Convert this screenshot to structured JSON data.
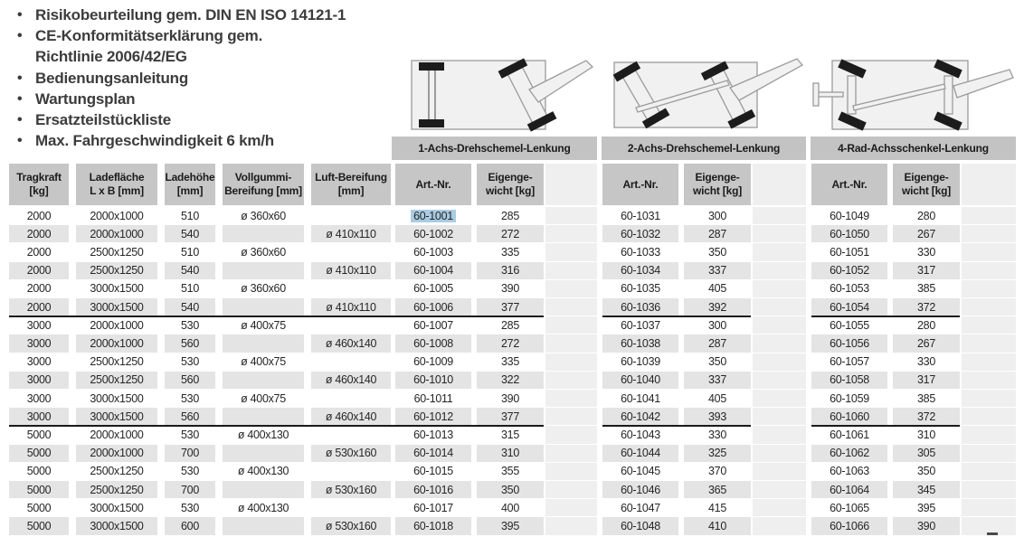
{
  "bullets": {
    "items": [
      "Risikobeurteilung gem. DIN EN ISO 14121-1",
      "CE-Konformitätserklärung gem.\nRichtlinie 2006/42/EG",
      "Bedienungsanleitung",
      "Wartungsplan",
      "Ersatzteilstückliste",
      "Max. Fahrgeschwindigkeit 6 km/h"
    ]
  },
  "steering_types": [
    {
      "label": "1-Achs-Drehschemel-Lenkung",
      "icon": "trailer-1-axle-turntable-steering"
    },
    {
      "label": "2-Achs-Drehschemel-Lenkung",
      "icon": "trailer-2-axle-turntable-steering"
    },
    {
      "label": "4-Rad-Achsschenkel-Lenkung",
      "icon": "trailer-4-wheel-knuckle-steering"
    }
  ],
  "table": {
    "spec_headers": [
      "Tragkraft\n[kg]",
      "Ladefläche\nL x B [mm]",
      "Ladehöhe\n[mm]",
      "Vollgummi-\nBereifung [mm]",
      "Luft-Bereifung\n[mm]"
    ],
    "art_header": "Art.-Nr.",
    "weight_header": "Eigenge-\nwicht [kg]",
    "rows": [
      [
        "2000",
        "2000x1000",
        "510",
        "ø 360x60",
        "",
        "60-1001",
        "285",
        "60-1031",
        "300",
        "60-1049",
        "280"
      ],
      [
        "2000",
        "2000x1000",
        "540",
        "",
        "ø 410x110",
        "60-1002",
        "272",
        "60-1032",
        "287",
        "60-1050",
        "267"
      ],
      [
        "2000",
        "2500x1250",
        "510",
        "ø 360x60",
        "",
        "60-1003",
        "335",
        "60-1033",
        "350",
        "60-1051",
        "330"
      ],
      [
        "2000",
        "2500x1250",
        "540",
        "",
        "ø 410x110",
        "60-1004",
        "316",
        "60-1034",
        "337",
        "60-1052",
        "317"
      ],
      [
        "2000",
        "3000x1500",
        "510",
        "ø 360x60",
        "",
        "60-1005",
        "390",
        "60-1035",
        "405",
        "60-1053",
        "385"
      ],
      [
        "2000",
        "3000x1500",
        "540",
        "",
        "ø 410x110",
        "60-1006",
        "377",
        "60-1036",
        "392",
        "60-1054",
        "372"
      ],
      [
        "3000",
        "2000x1000",
        "530",
        "ø 400x75",
        "",
        "60-1007",
        "285",
        "60-1037",
        "300",
        "60-1055",
        "280"
      ],
      [
        "3000",
        "2000x1000",
        "560",
        "",
        "ø 460x140",
        "60-1008",
        "272",
        "60-1038",
        "287",
        "60-1056",
        "267"
      ],
      [
        "3000",
        "2500x1250",
        "530",
        "ø 400x75",
        "",
        "60-1009",
        "335",
        "60-1039",
        "350",
        "60-1057",
        "330"
      ],
      [
        "3000",
        "2500x1250",
        "560",
        "",
        "ø 460x140",
        "60-1010",
        "322",
        "60-1040",
        "337",
        "60-1058",
        "317"
      ],
      [
        "3000",
        "3000x1500",
        "530",
        "ø 400x75",
        "",
        "60-1011",
        "390",
        "60-1041",
        "405",
        "60-1059",
        "385"
      ],
      [
        "3000",
        "3000x1500",
        "560",
        "",
        "ø 460x140",
        "60-1012",
        "377",
        "60-1042",
        "393",
        "60-1060",
        "372"
      ],
      [
        "5000",
        "2000x1000",
        "530",
        "ø 400x130",
        "",
        "60-1013",
        "315",
        "60-1043",
        "330",
        "60-1061",
        "310"
      ],
      [
        "5000",
        "2000x1000",
        "700",
        "",
        "ø 530x160",
        "60-1014",
        "310",
        "60-1044",
        "325",
        "60-1062",
        "305"
      ],
      [
        "5000",
        "2500x1250",
        "530",
        "ø 400x130",
        "",
        "60-1015",
        "355",
        "60-1045",
        "370",
        "60-1063",
        "350"
      ],
      [
        "5000",
        "2500x1250",
        "700",
        "",
        "ø 530x160",
        "60-1016",
        "350",
        "60-1046",
        "365",
        "60-1064",
        "345"
      ],
      [
        "5000",
        "3000x1500",
        "530",
        "ø 400x130",
        "",
        "60-1017",
        "400",
        "60-1047",
        "415",
        "60-1065",
        "395"
      ],
      [
        "5000",
        "3000x1500",
        "600",
        "",
        "ø 530x160",
        "60-1018",
        "395",
        "60-1048",
        "410",
        "60-1066",
        "390"
      ]
    ],
    "group_breaks": [
      6,
      12
    ],
    "highlight": {
      "row": 0,
      "col": 5,
      "value": "60-1001"
    }
  },
  "colors": {
    "header_bg": "#c6c6c6",
    "band_bg": "#c3c3c3",
    "row_alt_bg": "#e4e4e4",
    "filler_bg": "#efefef",
    "selection_bg": "#a9cbe2",
    "bullet_text": "#3c3c3c",
    "diagram_fill": "#f1f1f1",
    "diagram_stroke": "#9b9b9b",
    "wheel": "#1c1c1c"
  }
}
